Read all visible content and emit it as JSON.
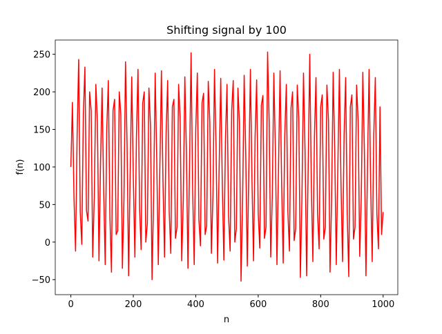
{
  "chart_data": {
    "type": "line",
    "title": "Shifting signal by 100",
    "x_label": "n",
    "y_label": "f(n)",
    "x": [
      0,
      5,
      10,
      15,
      20,
      25,
      30,
      35,
      40,
      45,
      50,
      55,
      60,
      65,
      70,
      75,
      80,
      85,
      90,
      95,
      100,
      105,
      110,
      115,
      120,
      125,
      130,
      135,
      140,
      145,
      150,
      155,
      160,
      165,
      170,
      175,
      180,
      185,
      190,
      195,
      200,
      205,
      210,
      215,
      220,
      225,
      230,
      235,
      240,
      245,
      250,
      255,
      260,
      265,
      270,
      275,
      280,
      285,
      290,
      295,
      300,
      305,
      310,
      315,
      320,
      325,
      330,
      335,
      340,
      345,
      350,
      355,
      360,
      365,
      370,
      375,
      380,
      385,
      390,
      395,
      400,
      405,
      410,
      415,
      420,
      425,
      430,
      435,
      440,
      445,
      450,
      455,
      460,
      465,
      470,
      475,
      480,
      485,
      490,
      495,
      500,
      505,
      510,
      515,
      520,
      525,
      530,
      535,
      540,
      545,
      550,
      555,
      560,
      565,
      570,
      575,
      580,
      585,
      590,
      595,
      600,
      605,
      610,
      615,
      620,
      625,
      630,
      635,
      640,
      645,
      650,
      655,
      660,
      665,
      670,
      675,
      680,
      685,
      690,
      695,
      700,
      705,
      710,
      715,
      720,
      725,
      730,
      735,
      740,
      745,
      750,
      755,
      760,
      765,
      770,
      775,
      780,
      785,
      790,
      795,
      800,
      805,
      810,
      815,
      820,
      825,
      830,
      835,
      840,
      845,
      850,
      855,
      860,
      865,
      870,
      875,
      880,
      885,
      890,
      895,
      900,
      905,
      910,
      915,
      920,
      925,
      930,
      935,
      940,
      945,
      950,
      955,
      960,
      965,
      970,
      975,
      980,
      985,
      990,
      995,
      1000
    ],
    "series": [
      {
        "name": "f(n)",
        "color": "#ff0000",
        "values": [
          100,
          186,
          60,
          -12,
          140,
          243,
          40,
          -3,
          170,
          233,
          42,
          28,
          200,
          175,
          -20,
          60,
          210,
          160,
          -25,
          105,
          205,
          70,
          -30,
          150,
          215,
          35,
          -40,
          175,
          190,
          10,
          15,
          200,
          170,
          -35,
          55,
          240,
          130,
          -45,
          95,
          220,
          85,
          -20,
          140,
          230,
          45,
          -10,
          185,
          200,
          0,
          25,
          205,
          155,
          -50,
          60,
          225,
          110,
          -30,
          100,
          228,
          80,
          -20,
          145,
          215,
          40,
          -15,
          180,
          190,
          5,
          20,
          210,
          165,
          -25,
          55,
          220,
          120,
          -35,
          100,
          252,
          70,
          -30,
          150,
          225,
          30,
          -5,
          185,
          198,
          10,
          22,
          214,
          160,
          -15,
          62,
          230,
          125,
          -28,
          102,
          218,
          75,
          -24,
          135,
          210,
          35,
          -12,
          175,
          215,
          0,
          18,
          205,
          158,
          -52,
          55,
          222,
          118,
          -32,
          98,
          230,
          82,
          -25,
          140,
          216,
          38,
          -8,
          182,
          195,
          5,
          20,
          253,
          162,
          -20,
          60,
          225,
          120,
          -30,
          100,
          228,
          78,
          -28,
          142,
          210,
          40,
          -12,
          178,
          200,
          2,
          18,
          209,
          165,
          -47,
          58,
          225,
          122,
          -45,
          100,
          250,
          78,
          -26,
          140,
          219,
          38,
          -9,
          180,
          196,
          4,
          20,
          209,
          162,
          -40,
          58,
          226,
          121,
          -30,
          100,
          230,
          79,
          -26,
          142,
          219,
          38,
          -46,
          180,
          196,
          4,
          20,
          209,
          162,
          -19,
          58,
          226,
          121,
          -45,
          100,
          230,
          79,
          -26,
          142,
          219,
          38,
          -9,
          180,
          10,
          40
        ]
      }
    ],
    "xlim": [
      -50,
      1047
    ],
    "ylim": [
      -70,
      269
    ],
    "xticks": [
      0,
      200,
      400,
      600,
      800,
      1000
    ],
    "yticks": [
      {
        "value": -50,
        "label": "−50"
      },
      0,
      50,
      100,
      150,
      200,
      250
    ]
  }
}
